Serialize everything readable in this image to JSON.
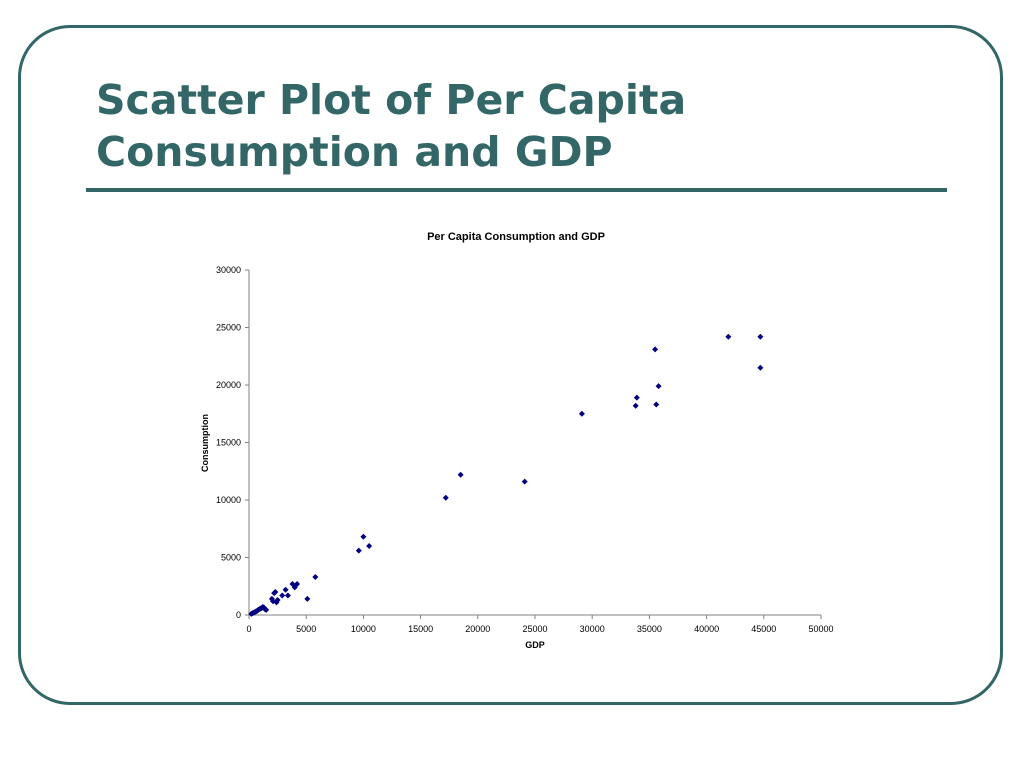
{
  "slide": {
    "title": "Scatter Plot of Per Capita Consumption and GDP"
  },
  "colors": {
    "accent": "#336666",
    "marker": "#000080",
    "axis": "#808080"
  },
  "chart_data": {
    "type": "scatter",
    "title": "Per Capita Consumption and GDP",
    "xlabel": "GDP",
    "ylabel": "Consumption",
    "xlim": [
      0,
      50000
    ],
    "ylim": [
      0,
      30000
    ],
    "xticks": [
      0,
      5000,
      10000,
      15000,
      20000,
      25000,
      30000,
      35000,
      40000,
      45000,
      50000
    ],
    "yticks": [
      0,
      5000,
      10000,
      15000,
      20000,
      25000,
      30000
    ],
    "grid": false,
    "legend": "none",
    "marker": "diamond",
    "series": [
      {
        "points": [
          [
            200,
            100
          ],
          [
            300,
            150
          ],
          [
            400,
            200
          ],
          [
            500,
            250
          ],
          [
            600,
            300
          ],
          [
            700,
            350
          ],
          [
            800,
            450
          ],
          [
            900,
            500
          ],
          [
            1000,
            550
          ],
          [
            1100,
            600
          ],
          [
            1200,
            700
          ],
          [
            1300,
            650
          ],
          [
            1400,
            500
          ],
          [
            1500,
            450
          ],
          [
            2000,
            1400
          ],
          [
            2100,
            1200
          ],
          [
            2200,
            1900
          ],
          [
            2300,
            2000
          ],
          [
            2400,
            1100
          ],
          [
            2500,
            1300
          ],
          [
            2900,
            1700
          ],
          [
            3200,
            2200
          ],
          [
            3400,
            1700
          ],
          [
            3800,
            2700
          ],
          [
            4000,
            2400
          ],
          [
            4200,
            2700
          ],
          [
            5100,
            1400
          ],
          [
            5800,
            3300
          ],
          [
            9600,
            5600
          ],
          [
            10000,
            6800
          ],
          [
            10500,
            6000
          ],
          [
            17200,
            10200
          ],
          [
            18500,
            12200
          ],
          [
            24100,
            11600
          ],
          [
            29100,
            17500
          ],
          [
            33800,
            18200
          ],
          [
            33900,
            18900
          ],
          [
            35500,
            23100
          ],
          [
            35600,
            18300
          ],
          [
            35800,
            19900
          ],
          [
            41900,
            24200
          ],
          [
            44700,
            24200
          ],
          [
            44700,
            21500
          ]
        ]
      }
    ]
  }
}
